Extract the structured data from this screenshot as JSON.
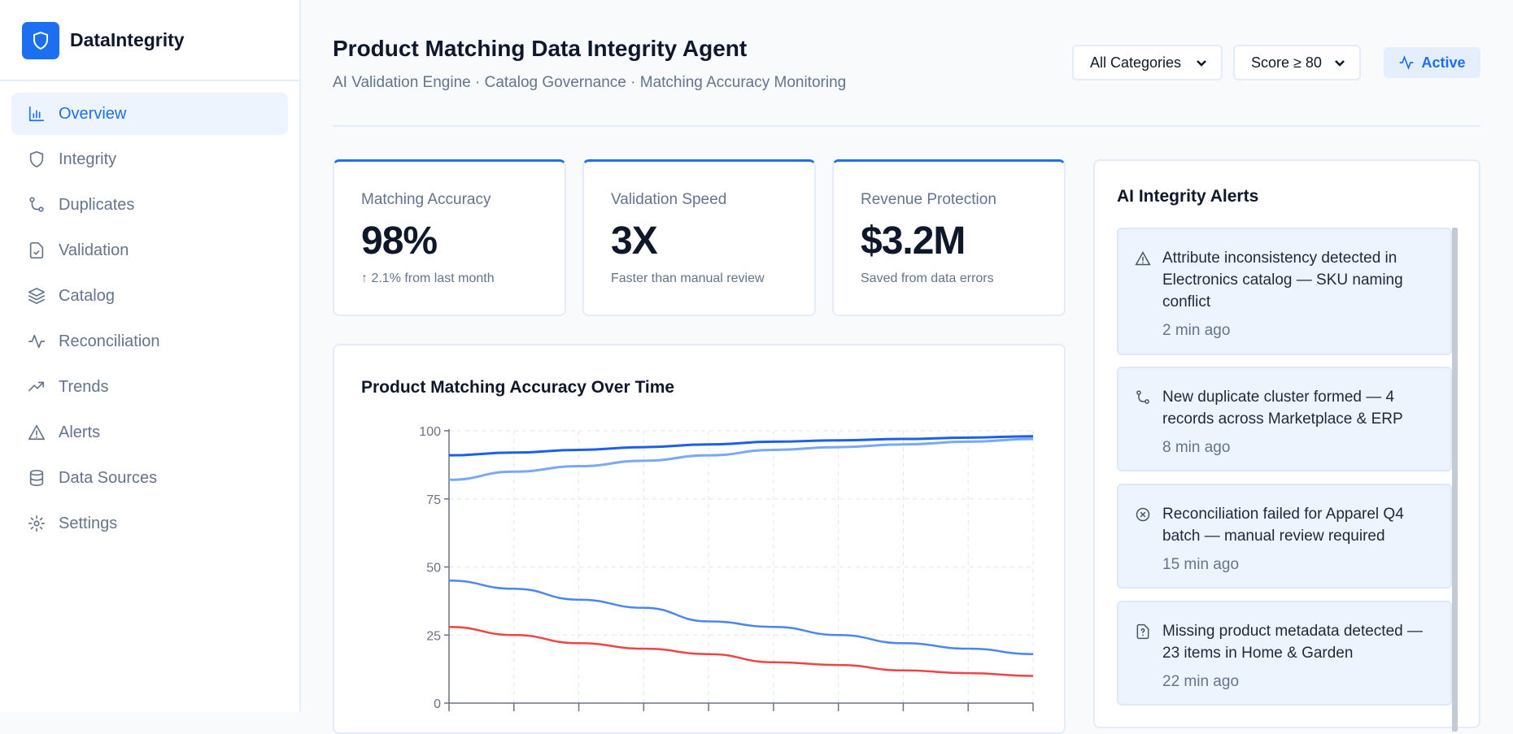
{
  "brand": {
    "name": "DataIntegrity",
    "icon": "shield-icon"
  },
  "sidebar": {
    "items": [
      {
        "label": "Overview",
        "icon": "bar-chart-icon",
        "active": true
      },
      {
        "label": "Integrity",
        "icon": "shield-icon"
      },
      {
        "label": "Duplicates",
        "icon": "git-merge-icon"
      },
      {
        "label": "Validation",
        "icon": "file-check-icon"
      },
      {
        "label": "Catalog",
        "icon": "layers-icon"
      },
      {
        "label": "Reconciliation",
        "icon": "activity-icon"
      },
      {
        "label": "Trends",
        "icon": "trending-up-icon"
      },
      {
        "label": "Alerts",
        "icon": "alert-triangle-icon"
      },
      {
        "label": "Data Sources",
        "icon": "database-icon"
      },
      {
        "label": "Settings",
        "icon": "gear-icon"
      }
    ]
  },
  "header": {
    "title": "Product Matching Data Integrity Agent",
    "subtitle": "AI Validation Engine · Catalog Governance · Matching Accuracy Monitoring",
    "category_select": "All Categories",
    "score_select": "Score ≥ 80",
    "status": "Active"
  },
  "kpis": [
    {
      "label": "Matching Accuracy",
      "value": "98%",
      "sub": "↑ 2.1% from last month"
    },
    {
      "label": "Validation Speed",
      "value": "3X",
      "sub": "Faster than manual review"
    },
    {
      "label": "Revenue Protection",
      "value": "$3.2M",
      "sub": "Saved from data errors"
    }
  ],
  "colors": {
    "accent": "#1d6ff2",
    "series": [
      "#1a5ff0",
      "#7aa7f7",
      "#4a86f3",
      "#ef4444"
    ]
  },
  "chart_data": {
    "type": "line",
    "title": "Product Matching Accuracy Over Time",
    "ylim": [
      0,
      100
    ],
    "yticks": [
      "0",
      "25",
      "50",
      "75",
      "100"
    ],
    "grid": true,
    "series": [
      {
        "values": [
          91,
          92,
          93,
          94,
          95,
          96,
          96.5,
          97,
          97.5,
          98
        ]
      },
      {
        "values": [
          82,
          85,
          87,
          89,
          91,
          93,
          94,
          95,
          96,
          97
        ]
      },
      {
        "values": [
          45,
          42,
          38,
          35,
          30,
          28,
          25,
          22,
          20,
          18
        ]
      },
      {
        "values": [
          28,
          25,
          22,
          20,
          18,
          15,
          14,
          12,
          11,
          10
        ]
      }
    ]
  },
  "alerts": {
    "title": "AI Integrity Alerts",
    "items": [
      {
        "icon": "alert-triangle-icon",
        "text": "Attribute inconsistency detected in Electronics catalog — SKU naming conflict",
        "time": "2 min ago"
      },
      {
        "icon": "git-merge-icon",
        "text": "New duplicate cluster formed — 4 records across Marketplace & ERP",
        "time": "8 min ago"
      },
      {
        "icon": "x-circle-icon",
        "text": "Reconciliation failed for Apparel Q4 batch — manual review required",
        "time": "15 min ago"
      },
      {
        "icon": "file-question-icon",
        "text": "Missing product metadata detected — 23 items in Home & Garden",
        "time": "22 min ago"
      }
    ]
  }
}
